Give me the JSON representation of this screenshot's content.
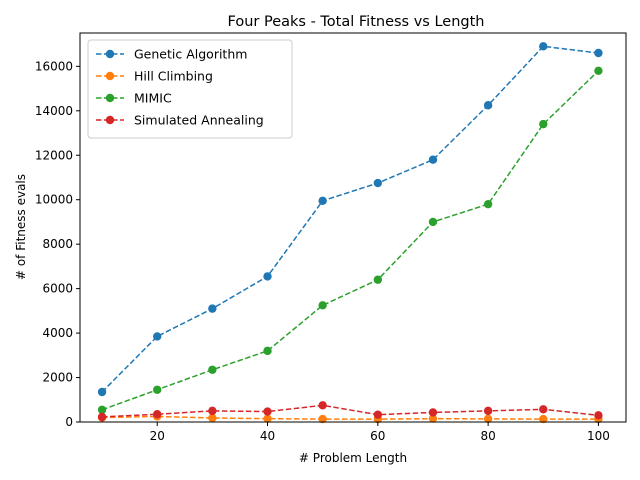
{
  "chart_data": {
    "type": "line",
    "title": "Four Peaks - Total Fitness vs Length",
    "xlabel": "# Problem Length",
    "ylabel": "# of Fitness evals",
    "xlim": [
      6,
      105
    ],
    "ylim": [
      0,
      17500
    ],
    "xticks": [
      20,
      40,
      60,
      80,
      100
    ],
    "yticks": [
      0,
      2000,
      4000,
      6000,
      8000,
      10000,
      12000,
      14000,
      16000
    ],
    "grid": false,
    "legend_position": "top-left",
    "x": [
      10,
      20,
      30,
      40,
      50,
      60,
      70,
      80,
      90,
      100
    ],
    "series": [
      {
        "name": "Genetic Algorithm",
        "color": "#1f77b4",
        "values": [
          1350,
          3850,
          5100,
          6550,
          9950,
          10750,
          11800,
          14250,
          16900,
          16600
        ]
      },
      {
        "name": "Hill Climbing",
        "color": "#ff7f0e",
        "values": [
          200,
          250,
          180,
          150,
          130,
          130,
          150,
          140,
          130,
          130
        ]
      },
      {
        "name": "MIMIC",
        "color": "#2ca02c",
        "values": [
          550,
          1450,
          2350,
          3200,
          5250,
          6400,
          9000,
          9800,
          13400,
          15800
        ]
      },
      {
        "name": "Simulated Annealing",
        "color": "#d62728",
        "values": [
          230,
          350,
          500,
          470,
          750,
          330,
          430,
          500,
          570,
          300
        ]
      }
    ]
  }
}
